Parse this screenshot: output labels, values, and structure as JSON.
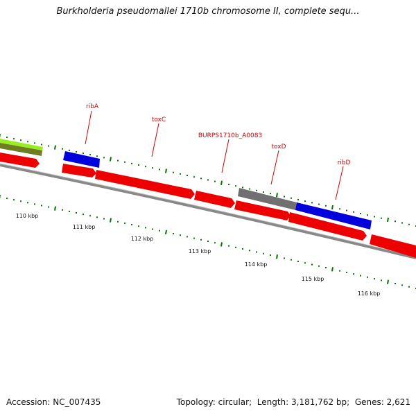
{
  "title": "Burkholderia pseudomallei 1710b chromosome II, complete sequ...",
  "footer": {
    "accession_label": "Accession:",
    "accession": "NC_007435",
    "topology_label": "Topology:",
    "topology": "circular",
    "length_label": "Length:",
    "length": "3,181,762 bp",
    "genes_label": "Genes:",
    "genes": "2,621"
  },
  "colors": {
    "forward_gene": "#ee0000",
    "blue_gene": "#0000dd",
    "gray_gene": "#707070",
    "lime_gene": "#99ee22",
    "backbone": "#888888",
    "tick": "#007700",
    "label": "#cc0000"
  },
  "gene_labels": [
    {
      "text": "ribA"
    },
    {
      "text": "toxC"
    },
    {
      "text": "BURPS1710b_A0083"
    },
    {
      "text": "toxD"
    },
    {
      "text": "ribD"
    }
  ],
  "scale_labels": [
    "110 kbp",
    "111 kbp",
    "112 kbp",
    "113 kbp",
    "114 kbp",
    "115 kbp",
    "116 kbp"
  ]
}
